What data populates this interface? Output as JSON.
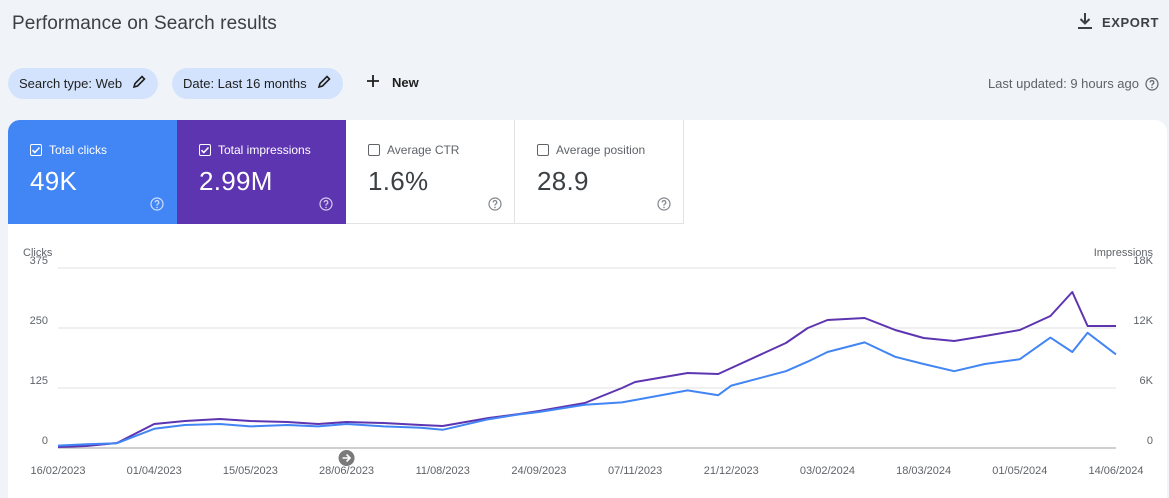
{
  "header": {
    "title": "Performance on Search results",
    "export_label": "EXPORT"
  },
  "filters": {
    "search_type": "Search type: Web",
    "date": "Date: Last 16 months",
    "new_label": "New",
    "last_updated": "Last updated: 9 hours ago"
  },
  "metrics": [
    {
      "label": "Total clicks",
      "value": "49K",
      "checked": true,
      "color": "#4285f4"
    },
    {
      "label": "Total impressions",
      "value": "2.99M",
      "checked": true,
      "color": "#5e35b1"
    },
    {
      "label": "Average CTR",
      "value": "1.6%",
      "checked": false
    },
    {
      "label": "Average position",
      "value": "28.9",
      "checked": false
    }
  ],
  "chart_data": {
    "type": "line",
    "left_axis_label": "Clicks",
    "right_axis_label": "Impressions",
    "left_ticks": [
      "375",
      "250",
      "125",
      "0"
    ],
    "right_ticks": [
      "18K",
      "12K",
      "6K",
      "0"
    ],
    "ylim_left": [
      0,
      375
    ],
    "ylim_right": [
      0,
      18000
    ],
    "x_ticks": [
      "16/02/2023",
      "01/04/2023",
      "15/05/2023",
      "28/06/2023",
      "11/08/2023",
      "24/09/2023",
      "07/11/2023",
      "21/12/2023",
      "03/02/2024",
      "18/03/2024",
      "01/05/2024",
      "14/06/2024"
    ],
    "grid": true,
    "series": [
      {
        "name": "Clicks",
        "axis": "left",
        "color": "#4285f4",
        "x": [
          "16/02/2023",
          "01/03/2023",
          "15/03/2023",
          "01/04/2023",
          "15/04/2023",
          "01/05/2023",
          "15/05/2023",
          "01/06/2023",
          "15/06/2023",
          "28/06/2023",
          "15/07/2023",
          "01/08/2023",
          "11/08/2023",
          "01/09/2023",
          "15/09/2023",
          "24/09/2023",
          "15/10/2023",
          "01/11/2023",
          "07/11/2023",
          "01/12/2023",
          "15/12/2023",
          "21/12/2023",
          "15/01/2024",
          "25/01/2024",
          "03/02/2024",
          "20/02/2024",
          "05/03/2024",
          "18/03/2024",
          "01/04/2024",
          "15/04/2024",
          "01/05/2024",
          "15/05/2024",
          "25/05/2024",
          "01/06/2024",
          "14/06/2024"
        ],
        "values": [
          5,
          8,
          10,
          40,
          48,
          50,
          45,
          48,
          45,
          50,
          45,
          42,
          38,
          60,
          70,
          75,
          90,
          95,
          100,
          120,
          110,
          130,
          160,
          180,
          200,
          220,
          190,
          175,
          160,
          175,
          185,
          230,
          200,
          240,
          195
        ]
      },
      {
        "name": "Impressions",
        "axis": "right",
        "color": "#5e35b1",
        "x": [
          "16/02/2023",
          "01/03/2023",
          "15/03/2023",
          "01/04/2023",
          "15/04/2023",
          "01/05/2023",
          "15/05/2023",
          "01/06/2023",
          "15/06/2023",
          "28/06/2023",
          "15/07/2023",
          "01/08/2023",
          "11/08/2023",
          "01/09/2023",
          "15/09/2023",
          "24/09/2023",
          "15/10/2023",
          "01/11/2023",
          "07/11/2023",
          "01/12/2023",
          "15/12/2023",
          "21/12/2023",
          "15/01/2024",
          "25/01/2024",
          "03/02/2024",
          "20/02/2024",
          "05/03/2024",
          "18/03/2024",
          "01/04/2024",
          "15/04/2024",
          "01/05/2024",
          "15/05/2024",
          "25/05/2024",
          "01/06/2024",
          "14/06/2024"
        ],
        "values": [
          100,
          200,
          500,
          2400,
          2700,
          2900,
          2700,
          2600,
          2400,
          2600,
          2500,
          2300,
          2200,
          3000,
          3400,
          3700,
          4500,
          6000,
          6600,
          7500,
          7400,
          8000,
          10500,
          12000,
          12800,
          13000,
          11800,
          11000,
          10700,
          11200,
          11800,
          13200,
          15600,
          12200,
          12200
        ]
      }
    ],
    "markers": [
      {
        "x": "28/06/2023",
        "icon": "annotation-arrow-icon"
      }
    ]
  }
}
